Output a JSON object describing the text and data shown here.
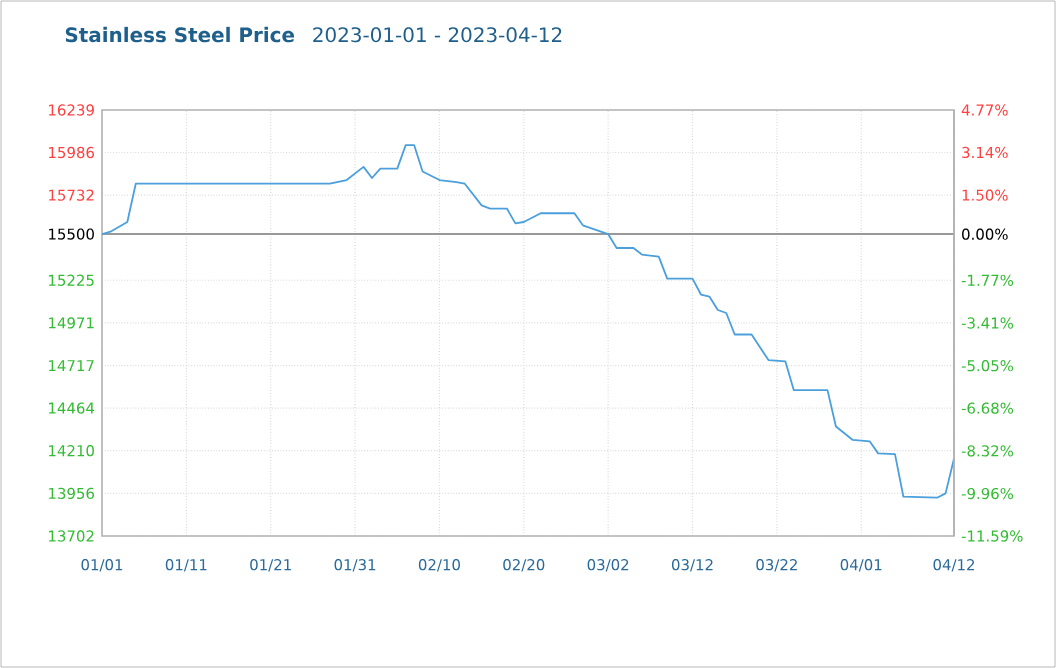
{
  "chart_data": {
    "type": "line",
    "title": "Stainless Steel Price",
    "subtitle": "2023-01-01 - 2023-04-12",
    "x": [
      "2023-01-01",
      "2023-01-02",
      "2023-01-04",
      "2023-01-05",
      "2023-01-28",
      "2023-01-30",
      "2023-02-01",
      "2023-02-02",
      "2023-02-03",
      "2023-02-05",
      "2023-02-06",
      "2023-02-07",
      "2023-02-08",
      "2023-02-10",
      "2023-02-12",
      "2023-02-13",
      "2023-02-15",
      "2023-02-16",
      "2023-02-18",
      "2023-02-19",
      "2023-02-20",
      "2023-02-22",
      "2023-02-26",
      "2023-02-27",
      "2023-03-02",
      "2023-03-03",
      "2023-03-05",
      "2023-03-06",
      "2023-03-08",
      "2023-03-09",
      "2023-03-12",
      "2023-03-13",
      "2023-03-14",
      "2023-03-15",
      "2023-03-16",
      "2023-03-17",
      "2023-03-19",
      "2023-03-21",
      "2023-03-23",
      "2023-03-24",
      "2023-03-28",
      "2023-03-29",
      "2023-03-31",
      "2023-04-02",
      "2023-04-03",
      "2023-04-05",
      "2023-04-06",
      "2023-04-10",
      "2023-04-11",
      "2023-04-12"
    ],
    "series": [
      {
        "color": "#4a9fdc",
        "values": [
          15500,
          15514,
          15572,
          15800,
          15800,
          15822,
          15900,
          15834,
          15890,
          15890,
          16030,
          16030,
          15873,
          15822,
          15810,
          15800,
          15671,
          15652,
          15652,
          15564,
          15572,
          15624,
          15624,
          15552,
          15500,
          15417,
          15417,
          15378,
          15366,
          15235,
          15235,
          15140,
          15128,
          15048,
          15030,
          14902,
          14902,
          14750,
          14742,
          14571,
          14571,
          14354,
          14274,
          14266,
          14194,
          14190,
          13936,
          13930,
          13956,
          14163
        ]
      }
    ],
    "xlim": [
      "2023-01-01",
      "2023-04-12"
    ],
    "xticks": [
      {
        "value": "2023-01-01",
        "label": "01/01"
      },
      {
        "value": "2023-01-11",
        "label": "01/11"
      },
      {
        "value": "2023-01-21",
        "label": "01/21"
      },
      {
        "value": "2023-01-31",
        "label": "01/31"
      },
      {
        "value": "2023-02-10",
        "label": "02/10"
      },
      {
        "value": "2023-02-20",
        "label": "02/20"
      },
      {
        "value": "2023-03-02",
        "label": "03/02"
      },
      {
        "value": "2023-03-12",
        "label": "03/12"
      },
      {
        "value": "2023-03-22",
        "label": "03/22"
      },
      {
        "value": "2023-04-01",
        "label": "04/01"
      },
      {
        "value": "2023-04-12",
        "label": "04/12"
      }
    ],
    "ylim": [
      13702,
      16239
    ],
    "yticks": [
      16239,
      15986,
      15732,
      15500,
      15225,
      14971,
      14717,
      14464,
      14210,
      13956,
      13702
    ],
    "y2lim": [
      -11.59,
      4.77
    ],
    "y2ticks": [
      {
        "value": 4.77,
        "label": "4.77%"
      },
      {
        "value": 3.14,
        "label": "3.14%"
      },
      {
        "value": 1.5,
        "label": "1.50%"
      },
      {
        "value": 0.0,
        "label": "0.00%"
      },
      {
        "value": -1.77,
        "label": "-1.77%"
      },
      {
        "value": -3.41,
        "label": "-3.41%"
      },
      {
        "value": -5.05,
        "label": "-5.05%"
      },
      {
        "value": -6.68,
        "label": "-6.68%"
      },
      {
        "value": -8.32,
        "label": "-8.32%"
      },
      {
        "value": -9.96,
        "label": "-9.96%"
      },
      {
        "value": -11.59,
        "label": "-11.59%"
      }
    ],
    "ref_lines": [
      {
        "axis": "y",
        "value": 15500,
        "color": "#999999"
      }
    ],
    "grid": true
  }
}
